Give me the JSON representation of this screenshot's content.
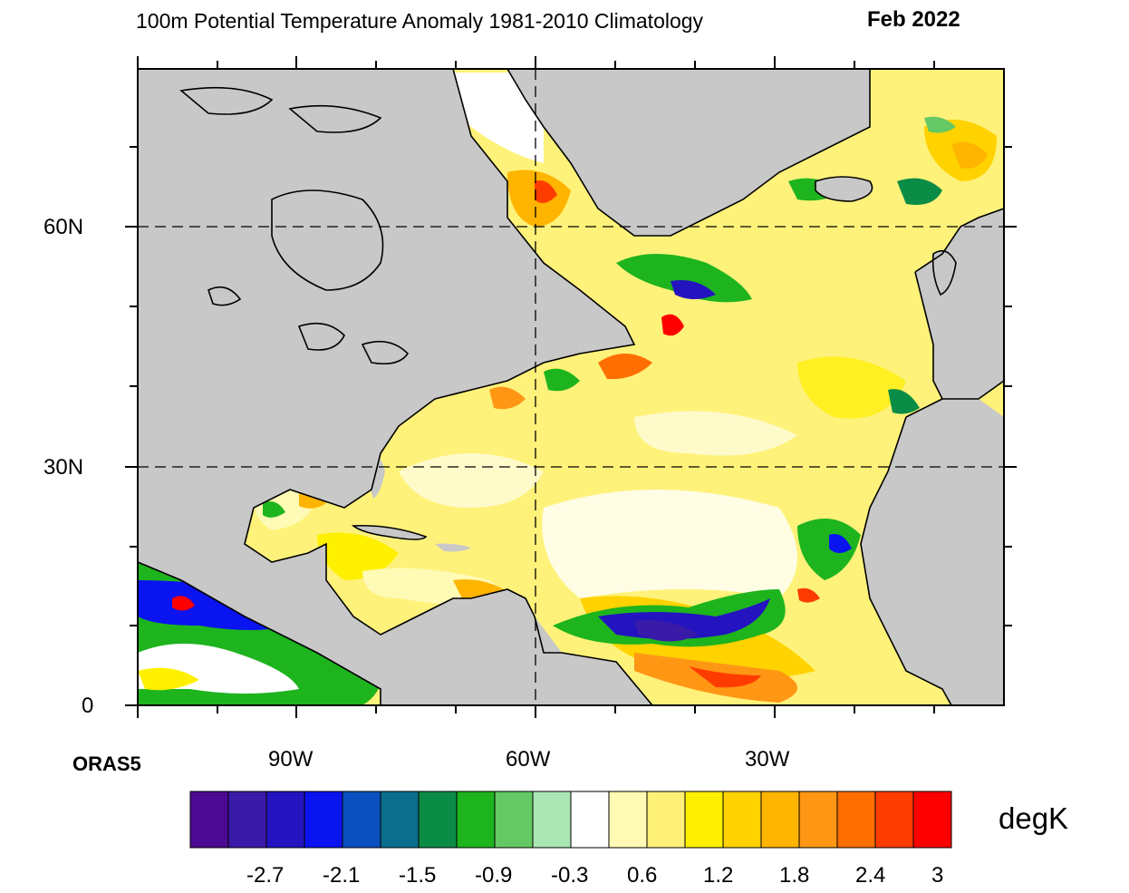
{
  "header": {
    "title": "100m Potential Temperature Anomaly  1981-2010 Climatology",
    "date": "Feb 2022"
  },
  "map": {
    "source_label": "ORAS5",
    "lat_labels": [
      "60N",
      "30N",
      "0"
    ],
    "lon_labels": [
      "90W",
      "60W",
      "30W"
    ],
    "land_color": "#c8c8c8",
    "ocean_background": "#fff27a"
  },
  "colorbar": {
    "units": "degK",
    "colors": [
      "#4b0a91",
      "#3a1aa8",
      "#2414c0",
      "#0a14f0",
      "#0a50c0",
      "#0a6e8c",
      "#0a8c46",
      "#1eb41e",
      "#64c864",
      "#aae6b4",
      "#ffffff",
      "#fffab4",
      "#fff078",
      "#fff000",
      "#ffd200",
      "#ffb400",
      "#ff9614",
      "#ff6e00",
      "#ff3c00",
      "#ff0000"
    ],
    "tick_labels": [
      "-2.7",
      "-2.1",
      "-1.5",
      "-0.9",
      "-0.3",
      "0.6",
      "1.2",
      "1.8",
      "2.4",
      "3"
    ]
  }
}
